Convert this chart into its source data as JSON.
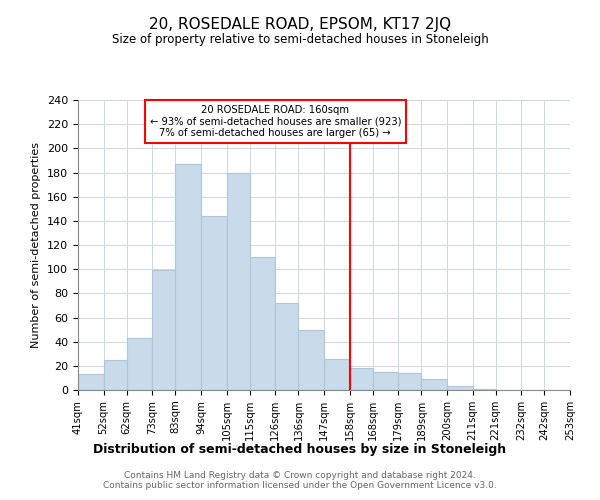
{
  "title": "20, ROSEDALE ROAD, EPSOM, KT17 2JQ",
  "subtitle": "Size of property relative to semi-detached houses in Stoneleigh",
  "xlabel": "Distribution of semi-detached houses by size in Stoneleigh",
  "ylabel": "Number of semi-detached properties",
  "footnote": "Contains HM Land Registry data © Crown copyright and database right 2024.\nContains public sector information licensed under the Open Government Licence v3.0.",
  "bar_color": "#c9daea",
  "bar_edge_color": "#aec6d8",
  "property_line_x": 158,
  "annotation_title": "20 ROSEDALE ROAD: 160sqm",
  "annotation_line1": "← 93% of semi-detached houses are smaller (923)",
  "annotation_line2": "7% of semi-detached houses are larger (65) →",
  "bins": [
    41,
    52,
    62,
    73,
    83,
    94,
    105,
    115,
    126,
    136,
    147,
    158,
    168,
    179,
    189,
    200,
    211,
    221,
    232,
    242,
    253
  ],
  "counts": [
    13,
    25,
    43,
    99,
    187,
    144,
    180,
    110,
    72,
    50,
    26,
    18,
    15,
    14,
    9,
    3,
    1,
    0,
    0,
    0
  ],
  "tick_labels": [
    "41sqm",
    "52sqm",
    "62sqm",
    "73sqm",
    "83sqm",
    "94sqm",
    "105sqm",
    "115sqm",
    "126sqm",
    "136sqm",
    "147sqm",
    "158sqm",
    "168sqm",
    "179sqm",
    "189sqm",
    "200sqm",
    "211sqm",
    "221sqm",
    "232sqm",
    "242sqm",
    "253sqm"
  ],
  "ylim": [
    0,
    240
  ],
  "yticks": [
    0,
    20,
    40,
    60,
    80,
    100,
    120,
    140,
    160,
    180,
    200,
    220,
    240
  ]
}
